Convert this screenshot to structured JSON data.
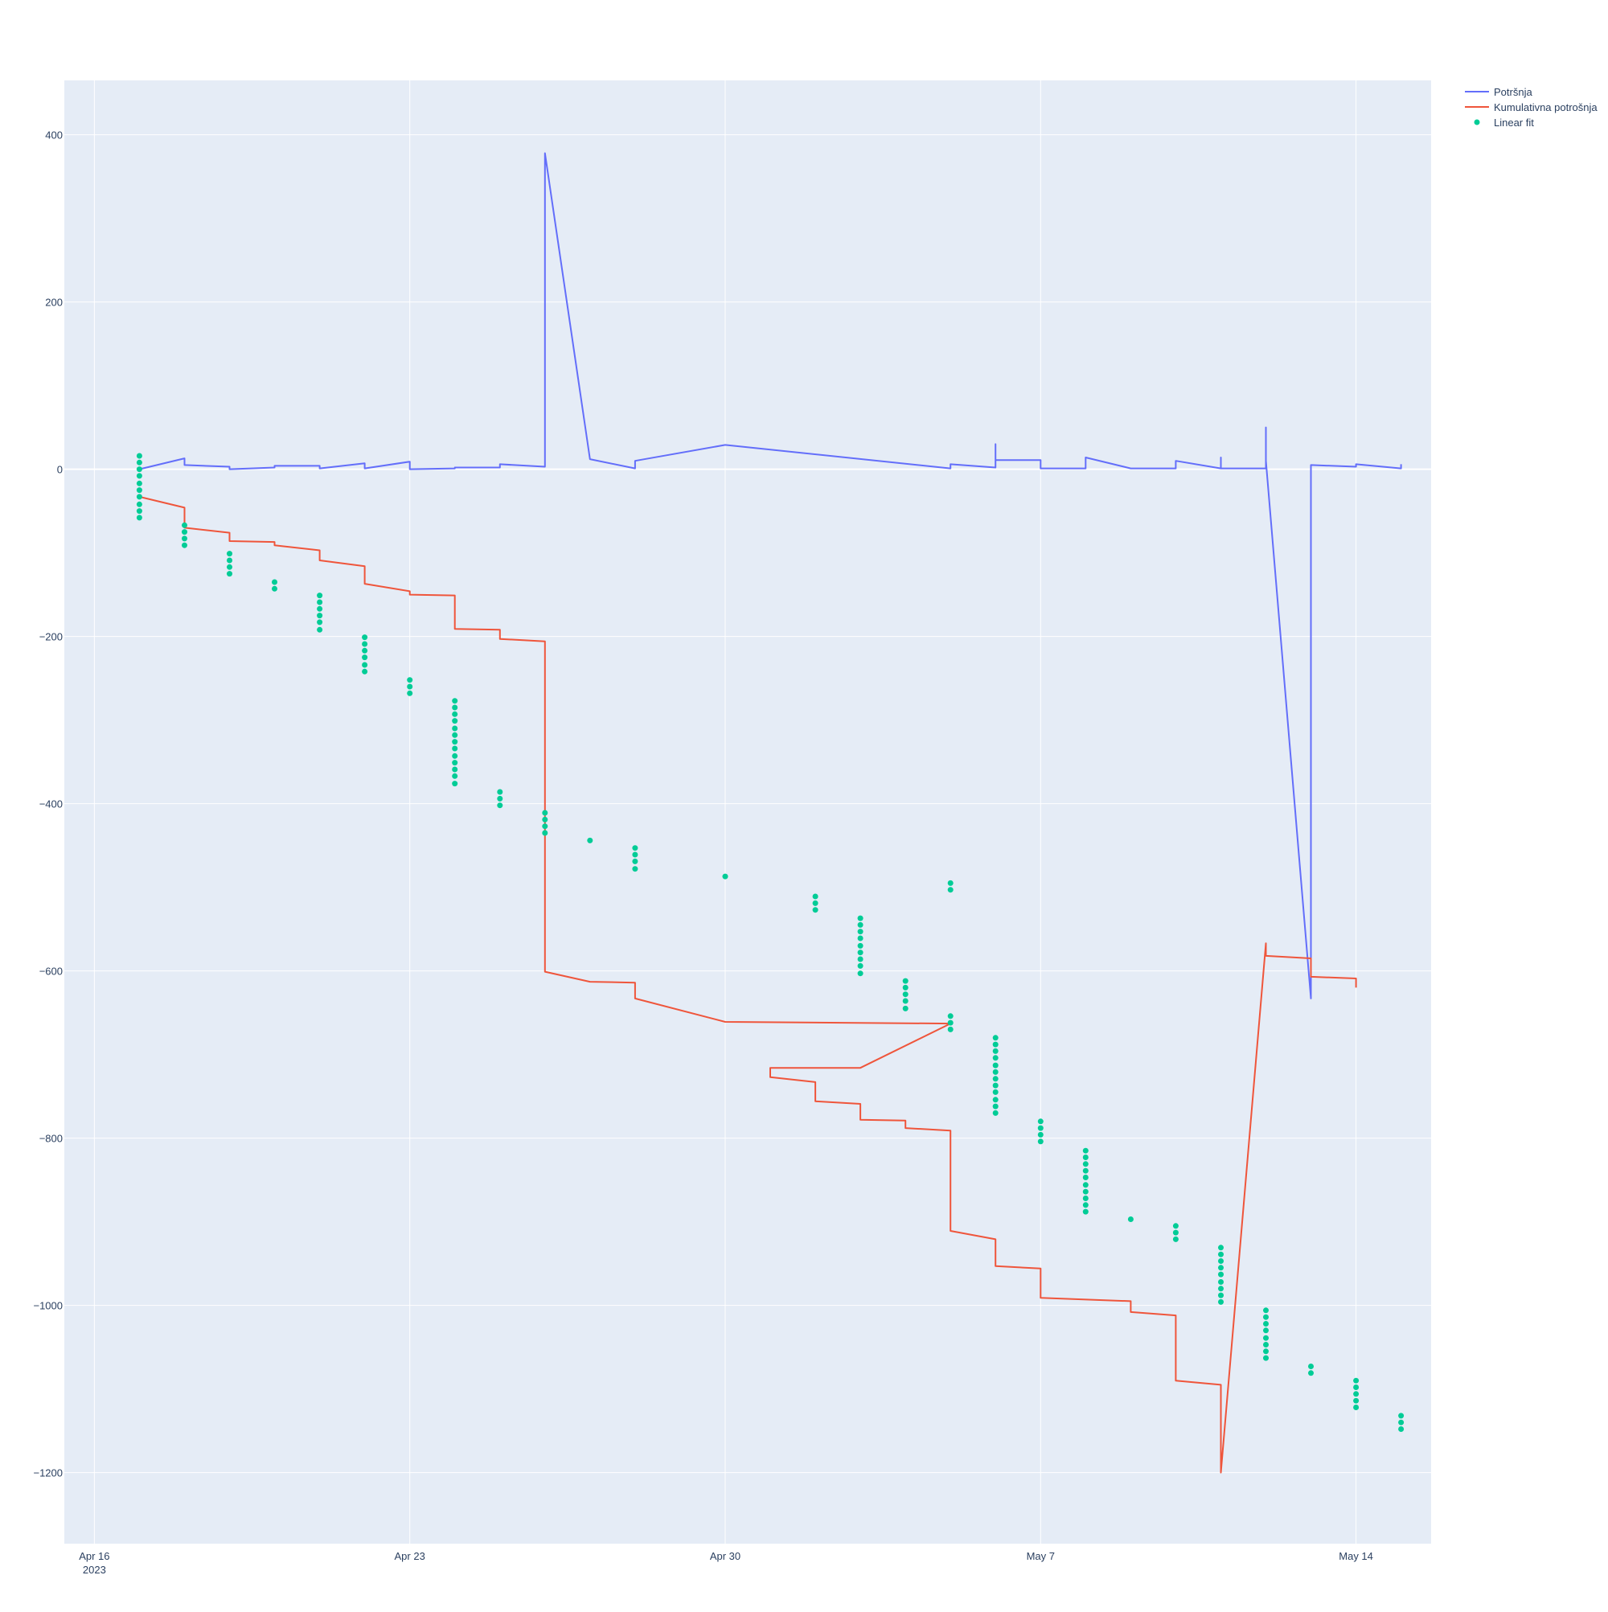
{
  "colors": {
    "plot_bg": "#e5ecf6",
    "grid": "#ffffff",
    "text": "#2a3f5f",
    "potrosnja": "#636efa",
    "kumulativna": "#ef553b",
    "linear_fit": "#00cc96"
  },
  "chart_data": {
    "type": "line",
    "title": "",
    "xlabel": "",
    "ylabel": "",
    "xlim": [
      "2023-04-15T08:00",
      "2023-05-15T16:00"
    ],
    "ylim": [
      -1285,
      465
    ],
    "grid": true,
    "legend_placement": "top-right",
    "x_ticks": [
      {
        "date": "2023-04-16",
        "label": "Apr 16",
        "sublabel": "2023"
      },
      {
        "date": "2023-04-23",
        "label": "Apr 23",
        "sublabel": ""
      },
      {
        "date": "2023-04-30",
        "label": "Apr 30",
        "sublabel": ""
      },
      {
        "date": "2023-05-07",
        "label": "May 7",
        "sublabel": ""
      },
      {
        "date": "2023-05-14",
        "label": "May 14",
        "sublabel": ""
      }
    ],
    "y_ticks": [
      {
        "value": 400,
        "label": "400"
      },
      {
        "value": 200,
        "label": "200"
      },
      {
        "value": 0,
        "label": "0"
      },
      {
        "value": -200,
        "label": "−200"
      },
      {
        "value": -400,
        "label": "−400"
      },
      {
        "value": -600,
        "label": "−600"
      },
      {
        "value": -800,
        "label": "−800"
      },
      {
        "value": -1000,
        "label": "−1000"
      },
      {
        "value": -1200,
        "label": "−1200"
      }
    ],
    "series": [
      {
        "name": "Potršnja",
        "mode": "lines",
        "points": [
          [
            "2023-04-17",
            0
          ],
          [
            "2023-04-18",
            13
          ],
          [
            "2023-04-18",
            5
          ],
          [
            "2023-04-19",
            3
          ],
          [
            "2023-04-19",
            0
          ],
          [
            "2023-04-20",
            2
          ],
          [
            "2023-04-20",
            4
          ],
          [
            "2023-04-21",
            4
          ],
          [
            "2023-04-21",
            1
          ],
          [
            "2023-04-22",
            7
          ],
          [
            "2023-04-22",
            1
          ],
          [
            "2023-04-23",
            9
          ],
          [
            "2023-04-23",
            0
          ],
          [
            "2023-04-24",
            1
          ],
          [
            "2023-04-24",
            2
          ],
          [
            "2023-04-25",
            2
          ],
          [
            "2023-04-25",
            6
          ],
          [
            "2023-04-26",
            3
          ],
          [
            "2023-04-26",
            378
          ],
          [
            "2023-04-27",
            12
          ],
          [
            "2023-04-28",
            1
          ],
          [
            "2023-04-28",
            10
          ],
          [
            "2023-04-30",
            29
          ],
          [
            "2023-05-05",
            1
          ],
          [
            "2023-05-05",
            6
          ],
          [
            "2023-05-06",
            2
          ],
          [
            "2023-05-06",
            30
          ],
          [
            "2023-05-06",
            11
          ],
          [
            "2023-05-07",
            11
          ],
          [
            "2023-05-07",
            1
          ],
          [
            "2023-05-08",
            1
          ],
          [
            "2023-05-08",
            14
          ],
          [
            "2023-05-09",
            1
          ],
          [
            "2023-05-10",
            1
          ],
          [
            "2023-05-10",
            10
          ],
          [
            "2023-05-11",
            1
          ],
          [
            "2023-05-11",
            14
          ],
          [
            "2023-05-11",
            1
          ],
          [
            "2023-05-12",
            1
          ],
          [
            "2023-05-12",
            50
          ],
          [
            "2023-05-12",
            10
          ],
          [
            "2023-05-13",
            -633
          ],
          [
            "2023-05-13",
            5
          ],
          [
            "2023-05-14",
            3
          ],
          [
            "2023-05-14",
            6
          ],
          [
            "2023-05-15",
            1
          ],
          [
            "2023-05-15",
            6
          ]
        ]
      },
      {
        "name": "Kumulativna potrošnja",
        "mode": "lines",
        "points": [
          [
            "2023-04-17",
            -33
          ],
          [
            "2023-04-18",
            -46
          ],
          [
            "2023-04-18",
            -70
          ],
          [
            "2023-04-19",
            -76
          ],
          [
            "2023-04-19",
            -86
          ],
          [
            "2023-04-20",
            -87
          ],
          [
            "2023-04-20",
            -91
          ],
          [
            "2023-04-21",
            -97
          ],
          [
            "2023-04-21",
            -109
          ],
          [
            "2023-04-22",
            -116
          ],
          [
            "2023-04-22",
            -137
          ],
          [
            "2023-04-23",
            -146
          ],
          [
            "2023-04-23",
            -150
          ],
          [
            "2023-04-24",
            -151
          ],
          [
            "2023-04-24",
            -191
          ],
          [
            "2023-04-25",
            -192
          ],
          [
            "2023-04-25",
            -203
          ],
          [
            "2023-04-26",
            -206
          ],
          [
            "2023-04-26",
            -601
          ],
          [
            "2023-04-27",
            -613
          ],
          [
            "2023-04-28",
            -614
          ],
          [
            "2023-04-28",
            -633
          ],
          [
            "2023-04-30",
            -661
          ],
          [
            "2023-05-05",
            -663
          ],
          [
            "2023-05-03",
            -716
          ],
          [
            "2023-05-01",
            -716
          ],
          [
            "2023-05-01",
            -727
          ],
          [
            "2023-05-02",
            -733
          ],
          [
            "2023-05-02",
            -756
          ],
          [
            "2023-05-03",
            -759
          ],
          [
            "2023-05-03",
            -778
          ],
          [
            "2023-05-04",
            -779
          ],
          [
            "2023-05-04",
            -788
          ],
          [
            "2023-05-05",
            -791
          ],
          [
            "2023-05-05",
            -911
          ],
          [
            "2023-05-06",
            -921
          ],
          [
            "2023-05-06",
            -953
          ],
          [
            "2023-05-07",
            -956
          ],
          [
            "2023-05-07",
            -991
          ],
          [
            "2023-05-09",
            -995
          ],
          [
            "2023-05-09",
            -1008
          ],
          [
            "2023-05-10",
            -1012
          ],
          [
            "2023-05-10",
            -1090
          ],
          [
            "2023-05-11",
            -1095
          ],
          [
            "2023-05-11",
            -1200
          ],
          [
            "2023-05-12",
            -567
          ],
          [
            "2023-05-12",
            -582
          ],
          [
            "2023-05-13",
            -585
          ],
          [
            "2023-05-13",
            -607
          ],
          [
            "2023-05-14",
            -609
          ],
          [
            "2023-05-14",
            -620
          ]
        ]
      },
      {
        "name": "Linear fit",
        "mode": "markers",
        "points": [
          [
            "2023-04-17",
            16
          ],
          [
            "2023-04-17",
            8
          ],
          [
            "2023-04-17",
            0
          ],
          [
            "2023-04-17",
            -8
          ],
          [
            "2023-04-17",
            -17
          ],
          [
            "2023-04-17",
            -25
          ],
          [
            "2023-04-17",
            -33
          ],
          [
            "2023-04-17",
            -42
          ],
          [
            "2023-04-17",
            -50
          ],
          [
            "2023-04-17",
            -58
          ],
          [
            "2023-04-18",
            -67
          ],
          [
            "2023-04-18",
            -75
          ],
          [
            "2023-04-18",
            -83
          ],
          [
            "2023-04-18",
            -91
          ],
          [
            "2023-04-19",
            -101
          ],
          [
            "2023-04-19",
            -109
          ],
          [
            "2023-04-19",
            -117
          ],
          [
            "2023-04-19",
            -125
          ],
          [
            "2023-04-20",
            -135
          ],
          [
            "2023-04-20",
            -143
          ],
          [
            "2023-04-21",
            -151
          ],
          [
            "2023-04-21",
            -159
          ],
          [
            "2023-04-21",
            -167
          ],
          [
            "2023-04-21",
            -175
          ],
          [
            "2023-04-21",
            -183
          ],
          [
            "2023-04-21",
            -192
          ],
          [
            "2023-04-22",
            -201
          ],
          [
            "2023-04-22",
            -209
          ],
          [
            "2023-04-22",
            -217
          ],
          [
            "2023-04-22",
            -225
          ],
          [
            "2023-04-22",
            -234
          ],
          [
            "2023-04-22",
            -242
          ],
          [
            "2023-04-23",
            -252
          ],
          [
            "2023-04-23",
            -260
          ],
          [
            "2023-04-23",
            -268
          ],
          [
            "2023-04-24",
            -277
          ],
          [
            "2023-04-24",
            -285
          ],
          [
            "2023-04-24",
            -293
          ],
          [
            "2023-04-24",
            -301
          ],
          [
            "2023-04-24",
            -310
          ],
          [
            "2023-04-24",
            -318
          ],
          [
            "2023-04-24",
            -326
          ],
          [
            "2023-04-24",
            -334
          ],
          [
            "2023-04-24",
            -343
          ],
          [
            "2023-04-24",
            -351
          ],
          [
            "2023-04-24",
            -359
          ],
          [
            "2023-04-24",
            -367
          ],
          [
            "2023-04-24",
            -376
          ],
          [
            "2023-04-25",
            -386
          ],
          [
            "2023-04-25",
            -394
          ],
          [
            "2023-04-25",
            -402
          ],
          [
            "2023-04-26",
            -411
          ],
          [
            "2023-04-26",
            -419
          ],
          [
            "2023-04-26",
            -427
          ],
          [
            "2023-04-26",
            -435
          ],
          [
            "2023-04-27",
            -444
          ],
          [
            "2023-04-28",
            -453
          ],
          [
            "2023-04-28",
            -461
          ],
          [
            "2023-04-28",
            -469
          ],
          [
            "2023-04-28",
            -478
          ],
          [
            "2023-04-30",
            -487
          ],
          [
            "2023-05-02",
            -511
          ],
          [
            "2023-05-02",
            -519
          ],
          [
            "2023-05-02",
            -527
          ],
          [
            "2023-05-03",
            -537
          ],
          [
            "2023-05-03",
            -545
          ],
          [
            "2023-05-03",
            -553
          ],
          [
            "2023-05-03",
            -561
          ],
          [
            "2023-05-03",
            -570
          ],
          [
            "2023-05-03",
            -578
          ],
          [
            "2023-05-03",
            -586
          ],
          [
            "2023-05-03",
            -594
          ],
          [
            "2023-05-03",
            -603
          ],
          [
            "2023-05-04",
            -612
          ],
          [
            "2023-05-04",
            -620
          ],
          [
            "2023-05-04",
            -628
          ],
          [
            "2023-05-04",
            -636
          ],
          [
            "2023-05-04",
            -645
          ],
          [
            "2023-05-05",
            -495
          ],
          [
            "2023-05-05",
            -503
          ],
          [
            "2023-05-05",
            -654
          ],
          [
            "2023-05-05",
            -662
          ],
          [
            "2023-05-05",
            -670
          ],
          [
            "2023-05-06",
            -680
          ],
          [
            "2023-05-06",
            -688
          ],
          [
            "2023-05-06",
            -696
          ],
          [
            "2023-05-06",
            -704
          ],
          [
            "2023-05-06",
            -713
          ],
          [
            "2023-05-06",
            -721
          ],
          [
            "2023-05-06",
            -729
          ],
          [
            "2023-05-06",
            -737
          ],
          [
            "2023-05-06",
            -745
          ],
          [
            "2023-05-06",
            -754
          ],
          [
            "2023-05-06",
            -762
          ],
          [
            "2023-05-06",
            -770
          ],
          [
            "2023-05-07",
            -780
          ],
          [
            "2023-05-07",
            -788
          ],
          [
            "2023-05-07",
            -796
          ],
          [
            "2023-05-07",
            -804
          ],
          [
            "2023-05-08",
            -815
          ],
          [
            "2023-05-08",
            -823
          ],
          [
            "2023-05-08",
            -831
          ],
          [
            "2023-05-08",
            -839
          ],
          [
            "2023-05-08",
            -847
          ],
          [
            "2023-05-08",
            -856
          ],
          [
            "2023-05-08",
            -864
          ],
          [
            "2023-05-08",
            -872
          ],
          [
            "2023-05-08",
            -880
          ],
          [
            "2023-05-08",
            -888
          ],
          [
            "2023-05-09",
            -897
          ],
          [
            "2023-05-10",
            -905
          ],
          [
            "2023-05-10",
            -913
          ],
          [
            "2023-05-10",
            -921
          ],
          [
            "2023-05-11",
            -931
          ],
          [
            "2023-05-11",
            -939
          ],
          [
            "2023-05-11",
            -947
          ],
          [
            "2023-05-11",
            -955
          ],
          [
            "2023-05-11",
            -963
          ],
          [
            "2023-05-11",
            -972
          ],
          [
            "2023-05-11",
            -980
          ],
          [
            "2023-05-11",
            -988
          ],
          [
            "2023-05-11",
            -996
          ],
          [
            "2023-05-12",
            -1006
          ],
          [
            "2023-05-12",
            -1014
          ],
          [
            "2023-05-12",
            -1022
          ],
          [
            "2023-05-12",
            -1030
          ],
          [
            "2023-05-12",
            -1039
          ],
          [
            "2023-05-12",
            -1047
          ],
          [
            "2023-05-12",
            -1055
          ],
          [
            "2023-05-12",
            -1063
          ],
          [
            "2023-05-13",
            -1073
          ],
          [
            "2023-05-13",
            -1081
          ],
          [
            "2023-05-14",
            -1090
          ],
          [
            "2023-05-14",
            -1098
          ],
          [
            "2023-05-14",
            -1106
          ],
          [
            "2023-05-14",
            -1114
          ],
          [
            "2023-05-14",
            -1122
          ],
          [
            "2023-05-15",
            -1132
          ],
          [
            "2023-05-15",
            -1140
          ],
          [
            "2023-05-15",
            -1148
          ]
        ]
      }
    ]
  }
}
